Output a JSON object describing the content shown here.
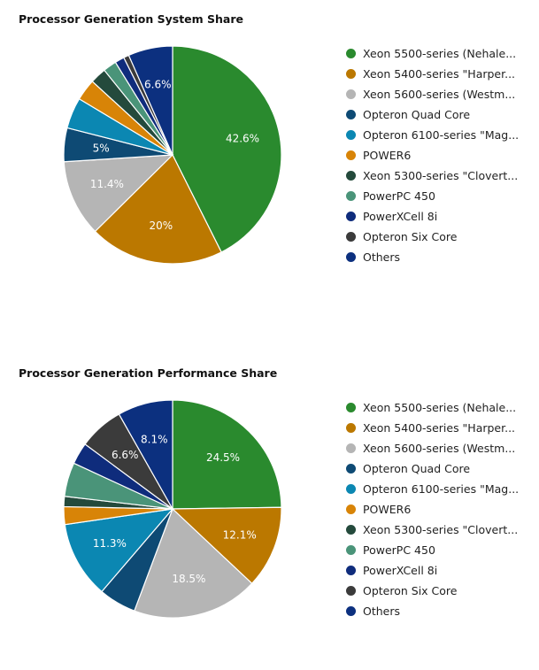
{
  "chart_data": [
    {
      "type": "pie",
      "title": "Processor Generation System Share",
      "slices": [
        {
          "label": "Xeon 5500-series (Nehalem-EP)",
          "display": "Xeon 5500-series (Nehale...",
          "value": 42.6,
          "value_label": "42.6%",
          "color": "#2a8a2e"
        },
        {
          "label": "Xeon 5400-series \"Harpertown\"",
          "display": "Xeon 5400-series \"Harper...",
          "value": 20.0,
          "value_label": "20%",
          "color": "#bb7800"
        },
        {
          "label": "Xeon 5600-series (Westmere-EP)",
          "display": "Xeon 5600-series (Westm...",
          "value": 11.4,
          "value_label": "11.4%",
          "color": "#b5b5b5"
        },
        {
          "label": "Opteron Quad Core",
          "display": "Opteron Quad Core",
          "value": 5.0,
          "value_label": "5%",
          "color": "#0e4a74"
        },
        {
          "label": "Opteron 6100-series \"Magny-Cours\"",
          "display": "Opteron 6100-series \"Mag...",
          "value": 4.6,
          "value_label": "",
          "color": "#0b87b2"
        },
        {
          "label": "POWER6",
          "display": "POWER6",
          "value": 3.2,
          "value_label": "",
          "color": "#d88407"
        },
        {
          "label": "Xeon 5300-series \"Clovertown\"",
          "display": "Xeon 5300-series \"Clovert...",
          "value": 2.4,
          "value_label": "",
          "color": "#244a3c"
        },
        {
          "label": "PowerPC 450",
          "display": "PowerPC 450",
          "value": 2.0,
          "value_label": "",
          "color": "#4a9479"
        },
        {
          "label": "PowerXCell 8i",
          "display": "PowerXCell 8i",
          "value": 1.4,
          "value_label": "",
          "color": "#0f2c7c"
        },
        {
          "label": "Opteron Six Core",
          "display": "Opteron Six Core",
          "value": 0.8,
          "value_label": "",
          "color": "#3b3b3b"
        },
        {
          "label": "Others",
          "display": "Others",
          "value": 6.6,
          "value_label": "6.6%",
          "color": "#0c307f"
        }
      ]
    },
    {
      "type": "pie",
      "title": "Processor Generation Performance Share",
      "slices": [
        {
          "label": "Xeon 5500-series (Nehalem-EP)",
          "display": "Xeon 5500-series (Nehale...",
          "value": 24.5,
          "value_label": "24.5%",
          "color": "#2a8a2e"
        },
        {
          "label": "Xeon 5400-series \"Harpertown\"",
          "display": "Xeon 5400-series \"Harper...",
          "value": 12.1,
          "value_label": "12.1%",
          "color": "#bb7800"
        },
        {
          "label": "Xeon 5600-series (Westmere-EP)",
          "display": "Xeon 5600-series (Westm...",
          "value": 18.5,
          "value_label": "18.5%",
          "color": "#b5b5b5"
        },
        {
          "label": "Opteron Quad Core",
          "display": "Opteron Quad Core",
          "value": 5.5,
          "value_label": "",
          "color": "#0e4a74"
        },
        {
          "label": "Opteron 6100-series \"Magny-Cours\"",
          "display": "Opteron 6100-series \"Mag...",
          "value": 11.3,
          "value_label": "11.3%",
          "color": "#0b87b2"
        },
        {
          "label": "POWER6",
          "display": "POWER6",
          "value": 2.6,
          "value_label": "",
          "color": "#d88407"
        },
        {
          "label": "Xeon 5300-series \"Clovertown\"",
          "display": "Xeon 5300-series \"Clovert...",
          "value": 1.5,
          "value_label": "",
          "color": "#244a3c"
        },
        {
          "label": "PowerPC 450",
          "display": "PowerPC 450",
          "value": 5.0,
          "value_label": "",
          "color": "#4a9479"
        },
        {
          "label": "PowerXCell 8i",
          "display": "PowerXCell 8i",
          "value": 3.2,
          "value_label": "",
          "color": "#0f2c7c"
        },
        {
          "label": "Opteron Six Core",
          "display": "Opteron Six Core",
          "value": 6.6,
          "value_label": "6.6%",
          "color": "#3b3b3b"
        },
        {
          "label": "Others",
          "display": "Others",
          "value": 8.1,
          "value_label": "8.1%",
          "color": "#0c307f"
        }
      ]
    }
  ]
}
